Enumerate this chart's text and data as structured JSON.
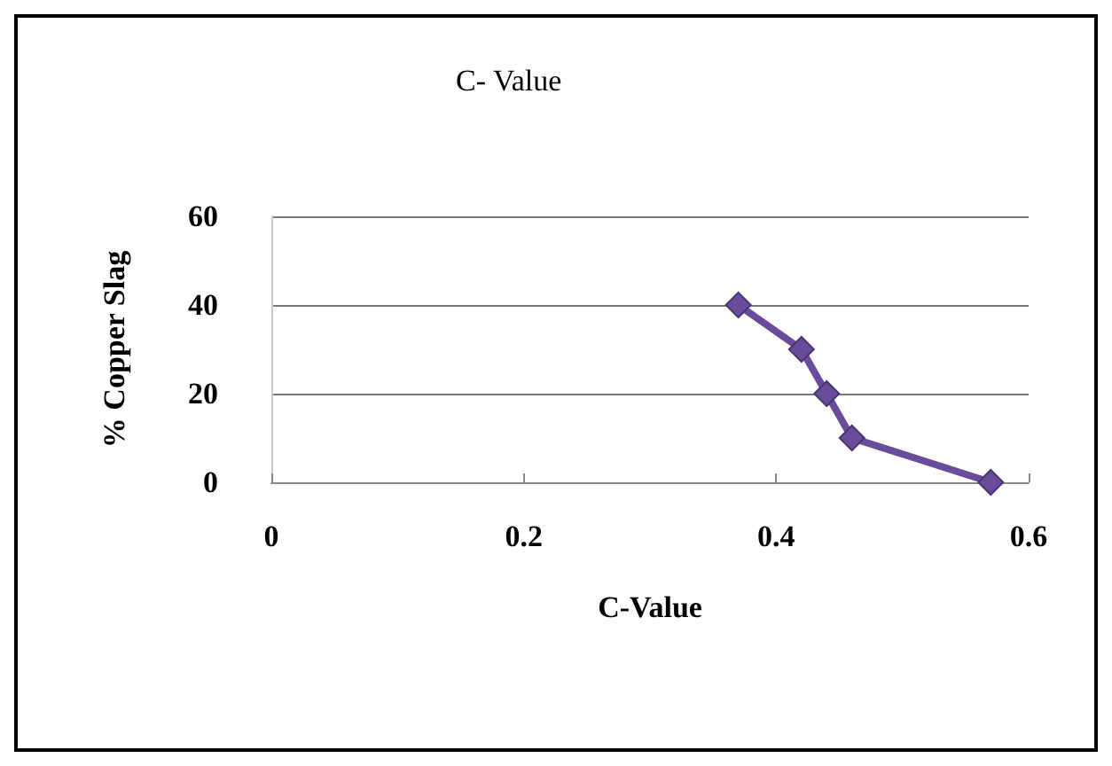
{
  "chart_data": {
    "type": "line",
    "title": "C- Value",
    "xlabel": "C-Value",
    "ylabel": "% Copper Slag",
    "x": [
      0.37,
      0.42,
      0.44,
      0.46,
      0.57
    ],
    "series": [
      {
        "color": "#6a4c9c",
        "values": [
          40,
          30,
          20,
          10,
          0
        ]
      }
    ],
    "xlim": [
      0,
      0.6
    ],
    "xticks": [
      0,
      0.2,
      0.4,
      0.6
    ],
    "ylim": [
      0,
      60
    ],
    "yticks": [
      0,
      20,
      40,
      60
    ],
    "grid": "y",
    "marker": "diamond",
    "line_style": "solid"
  }
}
